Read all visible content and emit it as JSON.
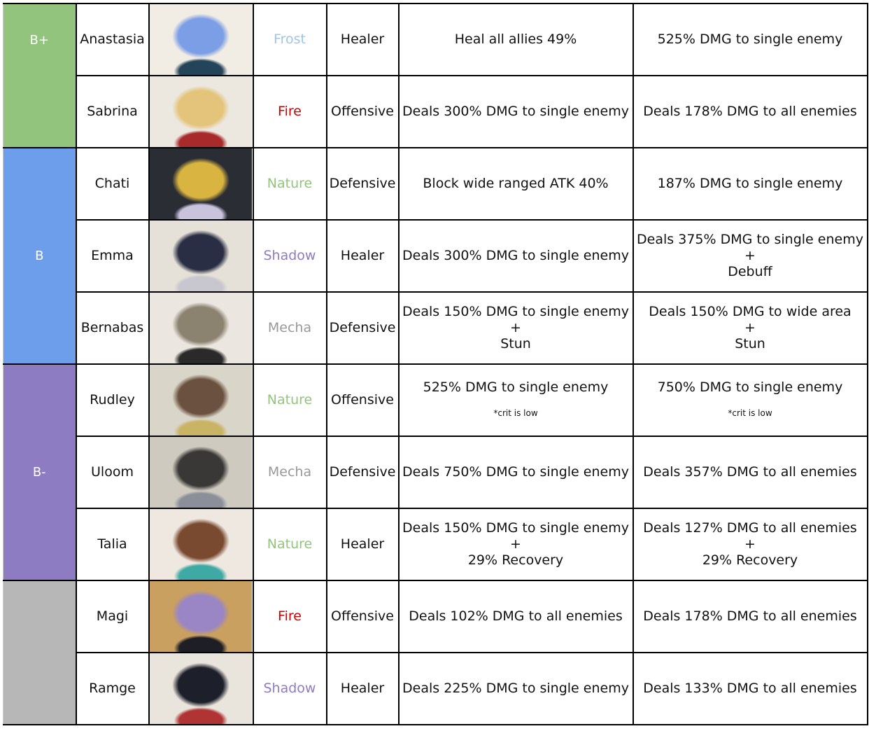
{
  "tiers": [
    {
      "label": "B+",
      "color": "#93c47d",
      "rows": [
        {
          "name": "Anastasia",
          "element": "Frost",
          "role": "Healer",
          "skill1": [
            "Heal all allies 49%"
          ],
          "skill2": [
            "525% DMG to single enemy"
          ],
          "portrait_colors": [
            "#f1ece4",
            "#7b9ee6",
            "#24445a"
          ]
        },
        {
          "name": "Sabrina",
          "element": "Fire",
          "role": "Offensive",
          "skill1": [
            "Deals 300% DMG to single enemy"
          ],
          "skill2": [
            "Deals 178% DMG to all enemies"
          ],
          "portrait_colors": [
            "#ece7df",
            "#e3c47a",
            "#a82a2a"
          ]
        }
      ]
    },
    {
      "label": "B",
      "color": "#6d9eeb",
      "rows": [
        {
          "name": "Chati",
          "element": "Nature",
          "role": "Defensive",
          "skill1": [
            "Block wide ranged ATK 40%"
          ],
          "skill2": [
            "187% DMG to single enemy"
          ],
          "portrait_colors": [
            "#2b2d35",
            "#d9b440",
            "#c9c3de"
          ]
        },
        {
          "name": "Emma",
          "element": "Shadow",
          "role": "Healer",
          "skill1": [
            "Deals 300% DMG to single enemy"
          ],
          "skill2": [
            "Deals 375% DMG to single enemy",
            "+",
            "Debuff"
          ],
          "portrait_colors": [
            "#e5e1d8",
            "#2a2e44",
            "#c8c6cf"
          ]
        },
        {
          "name": "Bernabas",
          "element": "Mecha",
          "role": "Defensive",
          "skill1": [
            "Deals 150% DMG to single enemy",
            "+",
            "Stun"
          ],
          "skill2": [
            "Deals 150% DMG to wide area",
            "+",
            "Stun"
          ],
          "portrait_colors": [
            "#ebe6df",
            "#8b8270",
            "#2a2a2a"
          ]
        }
      ]
    },
    {
      "label": "B-",
      "color": "#8e7cc3",
      "rows": [
        {
          "name": "Rudley",
          "element": "Nature",
          "role": "Offensive",
          "skill1": [
            "525% DMG to single enemy"
          ],
          "skill2": [
            "750% DMG to single enemy"
          ],
          "note": "*crit is low",
          "portrait_colors": [
            "#d9d6c9",
            "#6b5240",
            "#c9b466"
          ]
        },
        {
          "name": "Uloom",
          "element": "Mecha",
          "role": "Defensive",
          "skill1": [
            "Deals 750% DMG to single enemy"
          ],
          "skill2": [
            "Deals 357% DMG to all enemies"
          ],
          "portrait_colors": [
            "#cfcac0",
            "#3a3836",
            "#8a8f9a"
          ]
        },
        {
          "name": "Talia",
          "element": "Nature",
          "role": "Healer",
          "skill1": [
            "Deals 150% DMG to single enemy",
            "+",
            "29% Recovery"
          ],
          "skill2": [
            "Deals 127% DMG to all enemies",
            "+",
            "29% Recovery"
          ],
          "portrait_colors": [
            "#eee8e0",
            "#7a4a30",
            "#3fa9a6"
          ]
        }
      ]
    },
    {
      "label": "",
      "color": "#b7b7b7",
      "rows": [
        {
          "name": "Magi",
          "element": "Fire",
          "role": "Offensive",
          "skill1": [
            "Deals 102% DMG to all enemies"
          ],
          "skill2": [
            "Deals 178% DMG to all enemies"
          ],
          "portrait_colors": [
            "#c9a060",
            "#9a86c4",
            "#1e1e26"
          ]
        },
        {
          "name": "Ramge",
          "element": "Shadow",
          "role": "Healer",
          "skill1": [
            "Deals 225% DMG to single enemy"
          ],
          "skill2": [
            "Deals 133% DMG to all enemies"
          ],
          "portrait_colors": [
            "#e9e4dc",
            "#1d1f2a",
            "#b03434"
          ]
        }
      ]
    }
  ],
  "element_colors": {
    "Frost": "#9fc5e8",
    "Fire": "#cc0000",
    "Nature": "#93c47d",
    "Shadow": "#8e7cc3",
    "Mecha": "#999999"
  }
}
